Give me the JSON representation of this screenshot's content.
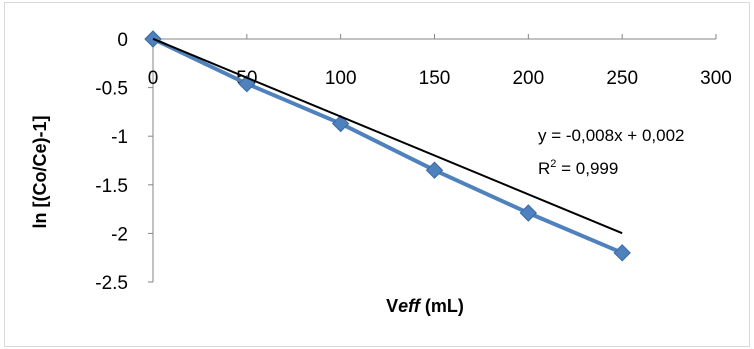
{
  "chart_data": {
    "type": "scatter",
    "title": "",
    "xlabel": {
      "prefix": "V",
      "italic": "eff",
      "suffix": " (mL)"
    },
    "ylabel": "ln [(Co/Ce)-1]",
    "xlim": [
      0,
      300
    ],
    "ylim": [
      -2.5,
      0
    ],
    "x_ticks": [
      "0",
      "50",
      "100",
      "150",
      "200",
      "250",
      "300"
    ],
    "y_ticks": [
      "0",
      "-0.5",
      "-1",
      "-1.5",
      "-2",
      "-2.5"
    ],
    "grid": false,
    "legend": "none",
    "series": [
      {
        "x": [
          0,
          50,
          100,
          150,
          200,
          250
        ],
        "y": [
          0,
          -0.46,
          -0.87,
          -1.35,
          -1.79,
          -2.2
        ],
        "marker": "diamond",
        "color": "#4f81bd"
      }
    ],
    "trendline": {
      "type": "linear",
      "slope": -0.008,
      "intercept": 0.002,
      "x_range": [
        0,
        250
      ],
      "color": "#000000"
    },
    "annotations": {
      "equation": "y = -0,008x + 0,002",
      "r2_prefix": "R",
      "r2_sup": "2",
      "r2_value": " = 0,999"
    }
  }
}
